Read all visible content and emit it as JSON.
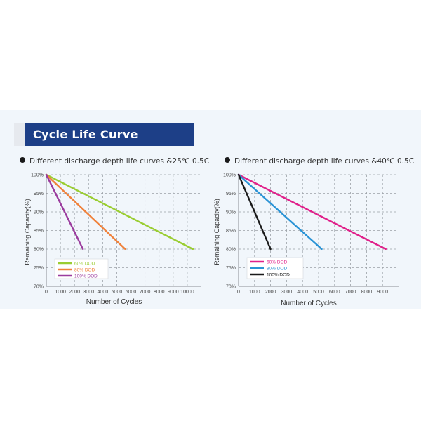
{
  "header": {
    "title": "Cycle Life Curve"
  },
  "chart_data": [
    {
      "type": "line",
      "subtitle": "Different discharge depth life curves &25℃ 0.5C",
      "xlabel": "Number of Cycles",
      "ylabel": "Remaining Capacity(%)",
      "xlim": [
        0,
        11000
      ],
      "ylim": [
        70,
        100
      ],
      "x_ticks": [
        0,
        1000,
        2000,
        3000,
        4000,
        5000,
        6000,
        7000,
        8000,
        9000,
        10000
      ],
      "y_ticks": [
        70,
        75,
        80,
        85,
        90,
        95,
        100
      ],
      "y_tick_labels": [
        "70%",
        "75%",
        "80%",
        "85%",
        "90%",
        "95%",
        "100%"
      ],
      "grid": true,
      "legend_position": "bottom-left",
      "series": [
        {
          "name": "60% DOD",
          "color": "#9acd32",
          "points": [
            [
              0,
              100
            ],
            [
              10400,
              80
            ]
          ]
        },
        {
          "name": "80% DOD",
          "color": "#f0813a",
          "points": [
            [
              0,
              100
            ],
            [
              5600,
              80
            ]
          ]
        },
        {
          "name": "100% DOD",
          "color": "#9b3c9e",
          "points": [
            [
              0,
              100
            ],
            [
              2600,
              80
            ]
          ]
        }
      ]
    },
    {
      "type": "line",
      "subtitle": "Different discharge depth life curves &40℃ 0.5C",
      "xlabel": "Number of Cycles",
      "ylabel": "Remaining Capacity(%)",
      "xlim": [
        0,
        10000
      ],
      "ylim": [
        70,
        100
      ],
      "x_ticks": [
        0,
        1000,
        2000,
        3000,
        4000,
        5000,
        6000,
        7000,
        8000,
        9000
      ],
      "y_ticks": [
        70,
        75,
        80,
        85,
        90,
        95,
        100
      ],
      "y_tick_labels": [
        "70%",
        "75%",
        "80%",
        "85%",
        "90%",
        "95%",
        "100%"
      ],
      "grid": true,
      "legend_position": "bottom-left",
      "series": [
        {
          "name": "60% DOD",
          "color": "#e0218a",
          "points": [
            [
              0,
              100
            ],
            [
              9200,
              80
            ]
          ]
        },
        {
          "name": "80% DOD",
          "color": "#2a93d5",
          "points": [
            [
              0,
              100
            ],
            [
              5200,
              80
            ]
          ]
        },
        {
          "name": "100% DOD",
          "color": "#1a1a1a",
          "points": [
            [
              0,
              100
            ],
            [
              2000,
              80
            ]
          ]
        }
      ]
    }
  ]
}
